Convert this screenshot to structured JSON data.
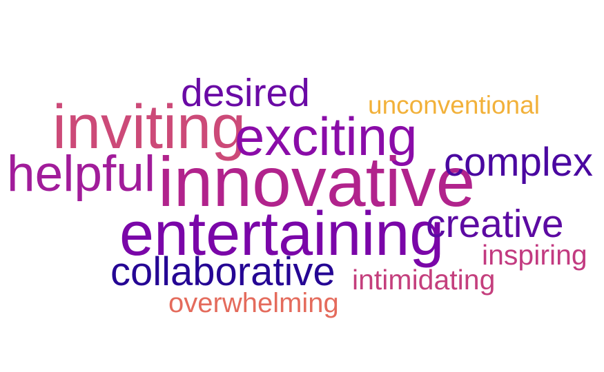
{
  "words": [
    {
      "text": "desired",
      "color": "#6a0aa5"
    },
    {
      "text": "unconventional",
      "color": "#f2b13a"
    },
    {
      "text": "inviting",
      "color": "#cc4a78"
    },
    {
      "text": "exciting",
      "color": "#8a0ca8"
    },
    {
      "text": "helpful",
      "color": "#a11c9a"
    },
    {
      "text": "innovative",
      "color": "#b1238c"
    },
    {
      "text": "complex",
      "color": "#4a07a0"
    },
    {
      "text": "entertaining",
      "color": "#7a06a8"
    },
    {
      "text": "creative",
      "color": "#5c0aa2"
    },
    {
      "text": "inspiring",
      "color": "#c23a80"
    },
    {
      "text": "collaborative",
      "color": "#250694"
    },
    {
      "text": "intimidating",
      "color": "#c43f7d"
    },
    {
      "text": "overwhelming",
      "color": "#e46b5c"
    }
  ]
}
